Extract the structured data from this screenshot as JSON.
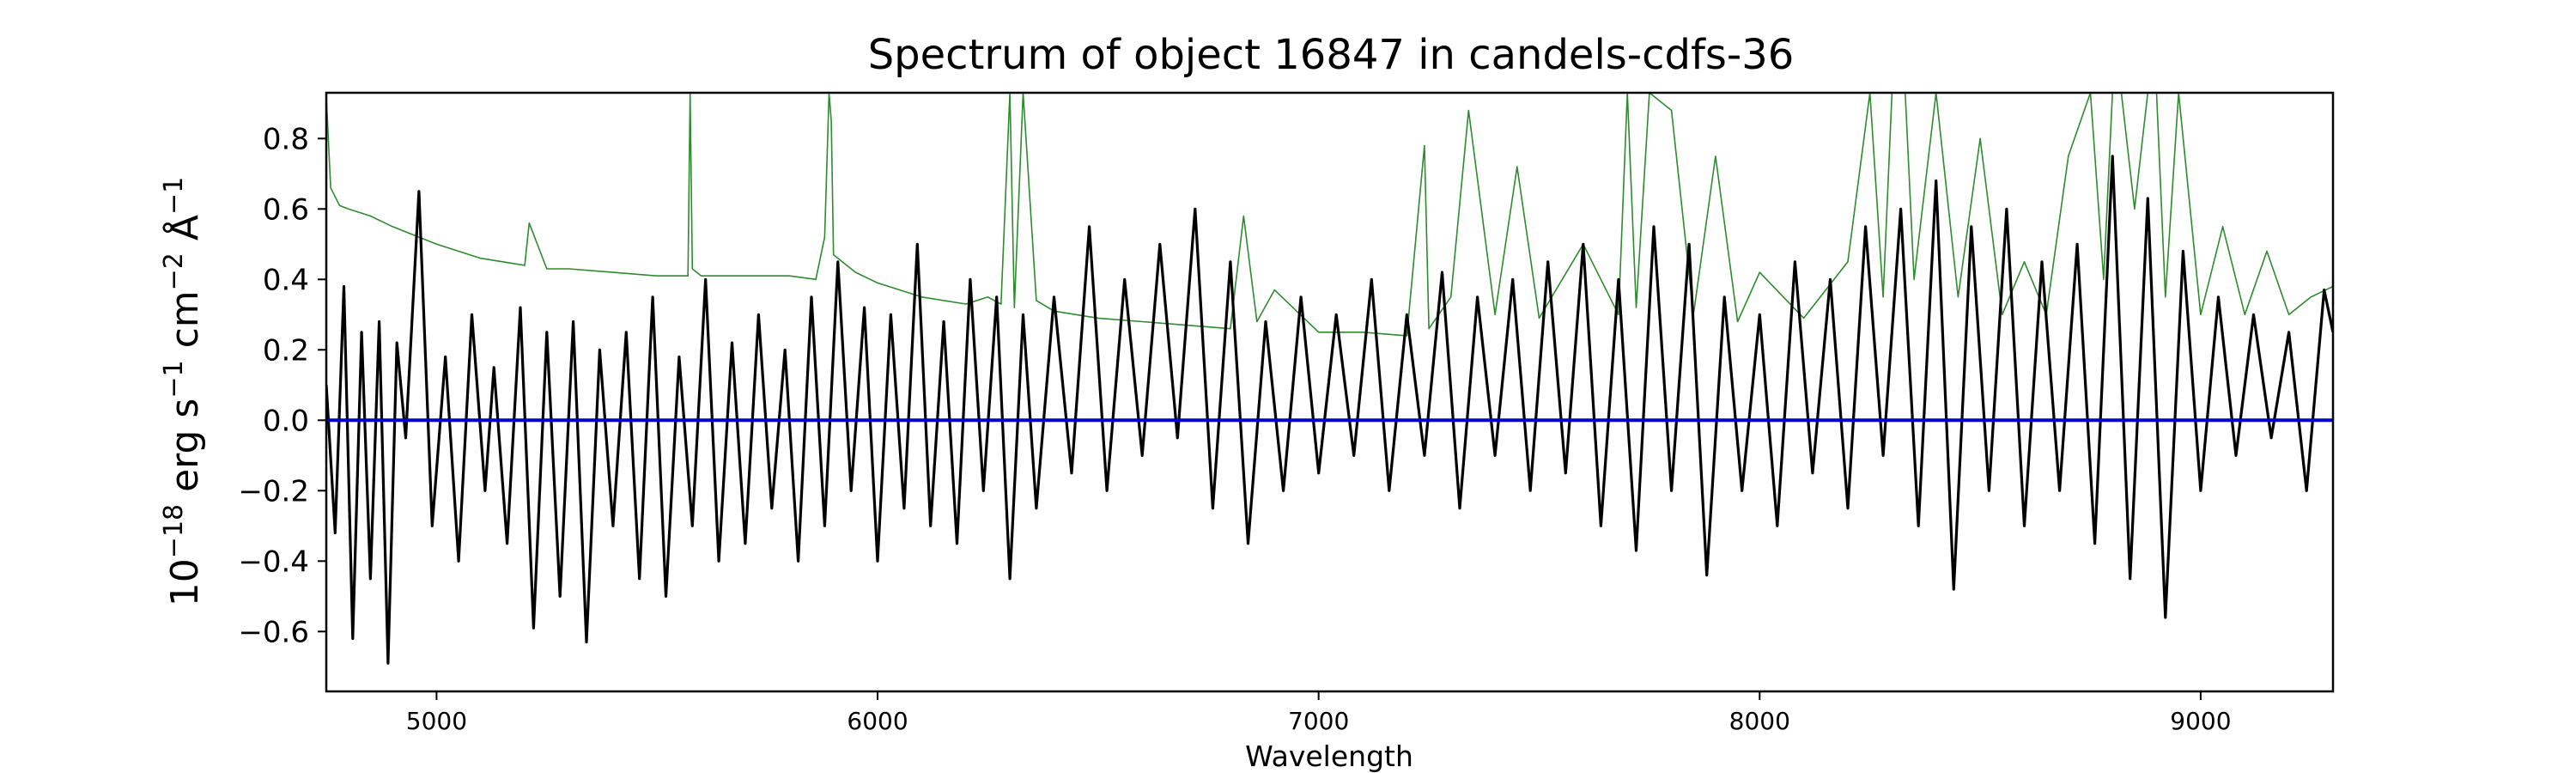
{
  "chart_data": {
    "type": "line",
    "title": "Spectrum of object 16847 in candels-cdfs-36",
    "xlabel": "Wavelength",
    "ylabel_parts": [
      "10",
      "−18",
      " erg s",
      "−1",
      " cm",
      "−2",
      " Å",
      "−1"
    ],
    "xlim": [
      4750,
      9300
    ],
    "ylim": [
      -0.77,
      0.93
    ],
    "x_ticks": [
      5000,
      6000,
      7000,
      8000,
      9000
    ],
    "x_tick_labels": [
      "5000",
      "6000",
      "7000",
      "8000",
      "9000"
    ],
    "y_ticks": [
      -0.6,
      -0.4,
      -0.2,
      0.0,
      0.2,
      0.4,
      0.6,
      0.8
    ],
    "y_tick_labels": [
      "−0.6",
      "−0.4",
      "−0.2",
      "0.0",
      "0.2",
      "0.4",
      "0.6",
      "0.8"
    ],
    "grid": false,
    "series": [
      {
        "role": "error",
        "color": "#2e8b2e",
        "x": [
          4750,
          4760,
          4780,
          4800,
          4850,
          4900,
          5000,
          5100,
          5150,
          5200,
          5210,
          5250,
          5300,
          5400,
          5500,
          5570,
          5575,
          5580,
          5600,
          5700,
          5800,
          5860,
          5880,
          5890,
          5895,
          5900,
          5950,
          6000,
          6100,
          6200,
          6250,
          6280,
          6300,
          6310,
          6330,
          6360,
          6400,
          6500,
          6600,
          6700,
          6800,
          6830,
          6860,
          6900,
          7000,
          7100,
          7200,
          7240,
          7250,
          7300,
          7340,
          7400,
          7450,
          7500,
          7600,
          7680,
          7700,
          7720,
          7750,
          7800,
          7850,
          7900,
          7950,
          8000,
          8100,
          8200,
          8250,
          8280,
          8300,
          8330,
          8350,
          8400,
          8450,
          8500,
          8550,
          8600,
          8650,
          8700,
          8750,
          8780,
          8800,
          8820,
          8850,
          8880,
          8900,
          8920,
          8950,
          9000,
          9050,
          9100,
          9150,
          9200,
          9250,
          9300
        ],
        "values": [
          0.92,
          0.66,
          0.61,
          0.6,
          0.58,
          0.55,
          0.5,
          0.46,
          0.45,
          0.44,
          0.56,
          0.43,
          0.43,
          0.42,
          0.41,
          0.41,
          0.93,
          0.43,
          0.41,
          0.41,
          0.41,
          0.4,
          0.52,
          0.93,
          0.85,
          0.47,
          0.42,
          0.39,
          0.35,
          0.33,
          0.35,
          0.33,
          0.93,
          0.32,
          0.93,
          0.34,
          0.31,
          0.29,
          0.28,
          0.27,
          0.26,
          0.58,
          0.28,
          0.37,
          0.25,
          0.25,
          0.24,
          0.78,
          0.26,
          0.35,
          0.88,
          0.3,
          0.72,
          0.29,
          0.5,
          0.3,
          0.93,
          0.32,
          0.93,
          0.88,
          0.3,
          0.75,
          0.28,
          0.42,
          0.29,
          0.45,
          0.93,
          0.35,
          0.93,
          0.93,
          0.4,
          0.93,
          0.35,
          0.8,
          0.3,
          0.45,
          0.3,
          0.75,
          0.93,
          0.4,
          0.93,
          0.93,
          0.6,
          0.93,
          0.93,
          0.35,
          0.93,
          0.3,
          0.55,
          0.3,
          0.48,
          0.3,
          0.35,
          0.38
        ]
      },
      {
        "role": "spectrum",
        "color": "#000000",
        "x": [
          4750,
          4770,
          4790,
          4810,
          4830,
          4850,
          4870,
          4890,
          4910,
          4930,
          4960,
          4990,
          5020,
          5050,
          5080,
          5110,
          5130,
          5160,
          5190,
          5220,
          5250,
          5280,
          5310,
          5340,
          5370,
          5400,
          5430,
          5460,
          5490,
          5520,
          5550,
          5580,
          5610,
          5640,
          5670,
          5700,
          5730,
          5760,
          5790,
          5820,
          5850,
          5880,
          5910,
          5940,
          5970,
          6000,
          6030,
          6060,
          6090,
          6120,
          6150,
          6180,
          6210,
          6240,
          6270,
          6300,
          6330,
          6360,
          6400,
          6440,
          6480,
          6520,
          6560,
          6600,
          6640,
          6680,
          6720,
          6760,
          6800,
          6840,
          6880,
          6920,
          6960,
          7000,
          7040,
          7080,
          7120,
          7160,
          7200,
          7240,
          7280,
          7320,
          7360,
          7400,
          7440,
          7480,
          7520,
          7560,
          7600,
          7640,
          7680,
          7720,
          7760,
          7800,
          7840,
          7880,
          7920,
          7960,
          8000,
          8040,
          8080,
          8120,
          8160,
          8200,
          8240,
          8280,
          8320,
          8360,
          8400,
          8440,
          8480,
          8520,
          8560,
          8600,
          8640,
          8680,
          8720,
          8760,
          8800,
          8840,
          8880,
          8920,
          8960,
          9000,
          9040,
          9080,
          9120,
          9160,
          9200,
          9240,
          9280,
          9300
        ],
        "values": [
          0.1,
          -0.32,
          0.38,
          -0.62,
          0.25,
          -0.45,
          0.28,
          -0.69,
          0.22,
          -0.05,
          0.65,
          -0.3,
          0.18,
          -0.4,
          0.3,
          -0.2,
          0.15,
          -0.35,
          0.32,
          -0.59,
          0.25,
          -0.5,
          0.28,
          -0.63,
          0.2,
          -0.3,
          0.25,
          -0.45,
          0.35,
          -0.5,
          0.18,
          -0.3,
          0.4,
          -0.4,
          0.22,
          -0.35,
          0.3,
          -0.25,
          0.2,
          -0.4,
          0.35,
          -0.3,
          0.45,
          -0.2,
          0.32,
          -0.4,
          0.3,
          -0.25,
          0.5,
          -0.3,
          0.28,
          -0.35,
          0.4,
          -0.2,
          0.35,
          -0.45,
          0.3,
          -0.25,
          0.35,
          -0.15,
          0.55,
          -0.2,
          0.4,
          -0.1,
          0.5,
          -0.05,
          0.6,
          -0.25,
          0.45,
          -0.35,
          0.28,
          -0.2,
          0.35,
          -0.15,
          0.3,
          -0.1,
          0.4,
          -0.2,
          0.3,
          -0.1,
          0.42,
          -0.25,
          0.35,
          -0.1,
          0.4,
          -0.2,
          0.45,
          -0.15,
          0.5,
          -0.3,
          0.4,
          -0.37,
          0.55,
          -0.2,
          0.5,
          -0.44,
          0.35,
          -0.2,
          0.3,
          -0.3,
          0.45,
          -0.15,
          0.4,
          -0.25,
          0.55,
          -0.1,
          0.6,
          -0.3,
          0.68,
          -0.48,
          0.55,
          -0.2,
          0.6,
          -0.3,
          0.45,
          -0.2,
          0.5,
          -0.35,
          0.75,
          -0.45,
          0.63,
          -0.56,
          0.48,
          -0.2,
          0.35,
          -0.1,
          0.3,
          -0.05,
          0.25,
          -0.2,
          0.37,
          0.25
        ]
      },
      {
        "role": "zero",
        "color": "#0000cc",
        "x": [
          4750,
          9300
        ],
        "values": [
          0.0,
          0.0
        ]
      }
    ]
  }
}
